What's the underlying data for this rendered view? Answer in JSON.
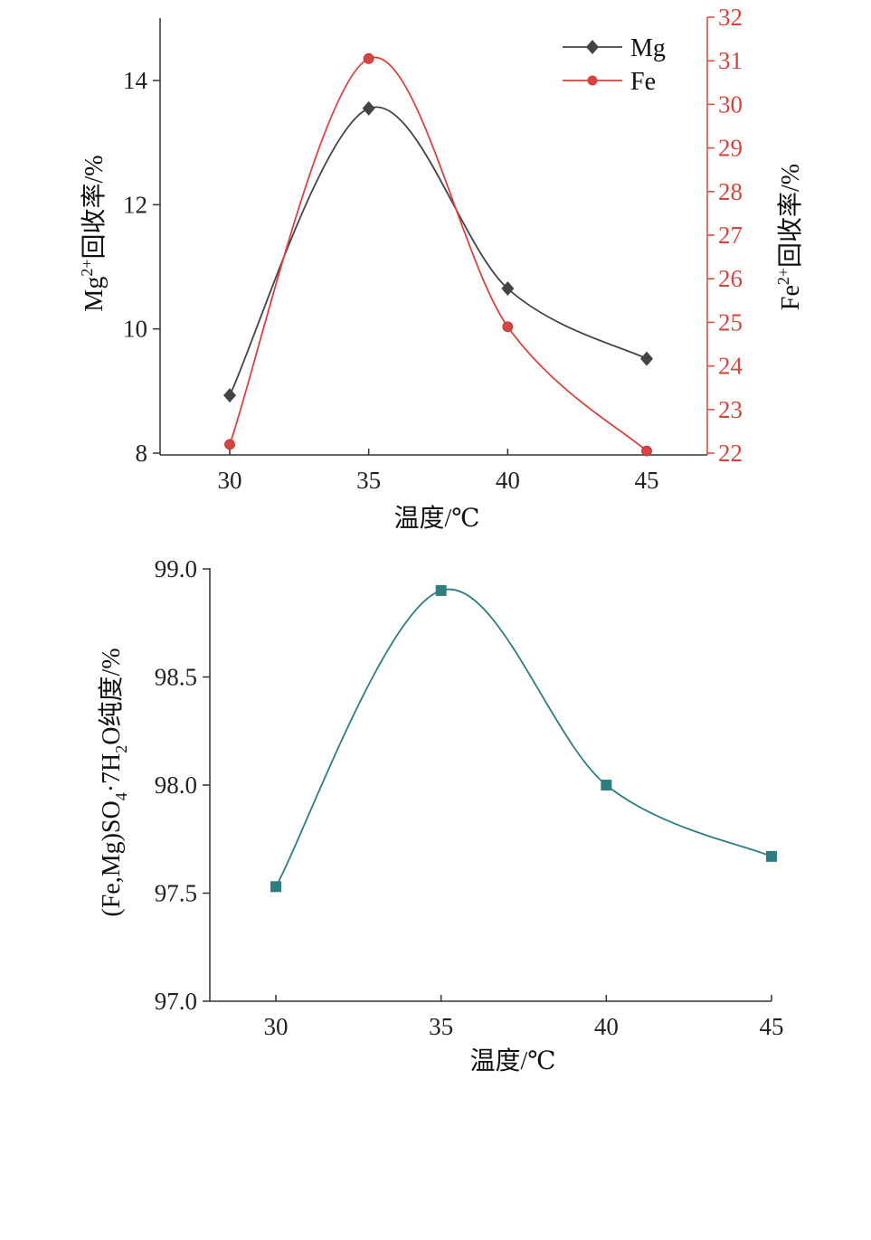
{
  "chart_data": [
    {
      "type": "line",
      "x": [
        30,
        35,
        40,
        45
      ],
      "xlabel": "温度/℃",
      "xticks": [
        "30",
        "35",
        "40",
        "45"
      ],
      "xlim": [
        27.5,
        47
      ],
      "ylabel_left": {
        "main": "Mg",
        "sup": "2+",
        "rest": "回收率/%"
      },
      "ylabel_right": {
        "main": "Fe",
        "sup": "2+",
        "rest": "回收率/%"
      },
      "ylim_left": [
        8,
        15
      ],
      "yticks_left": [
        "8",
        "10",
        "12",
        "14"
      ],
      "ylim_right": [
        22,
        32
      ],
      "yticks_right": [
        "22",
        "23",
        "24",
        "25",
        "26",
        "27",
        "28",
        "29",
        "30",
        "31",
        "32"
      ],
      "series": [
        {
          "name": "Mg",
          "axis": "left",
          "values": [
            8.93,
            13.55,
            10.65,
            9.52
          ],
          "color": "#444444",
          "marker": "diamond"
        },
        {
          "name": "Fe",
          "axis": "right",
          "values": [
            22.2,
            31.05,
            24.9,
            22.05
          ],
          "color": "#d6453f",
          "marker": "circle"
        }
      ],
      "legend": "top-right",
      "grid": false
    },
    {
      "type": "line",
      "x": [
        30,
        35,
        40,
        45
      ],
      "xlabel": "温度/℃",
      "xticks": [
        "30",
        "35",
        "40",
        "45"
      ],
      "xlim": [
        28,
        45
      ],
      "ylabel": {
        "p1": "(Fe,Mg)SO",
        "s1": "4",
        "p2": "·7H",
        "s2": "2",
        "p3": "O纯度/%"
      },
      "ylim": [
        97.0,
        99.0
      ],
      "yticks": [
        "97.0",
        "97.5",
        "98.0",
        "98.5",
        "99.0"
      ],
      "series": [
        {
          "values": [
            97.53,
            98.9,
            98.0,
            97.67
          ],
          "color": "#2e7d80",
          "marker": "square"
        }
      ],
      "grid": false
    }
  ]
}
